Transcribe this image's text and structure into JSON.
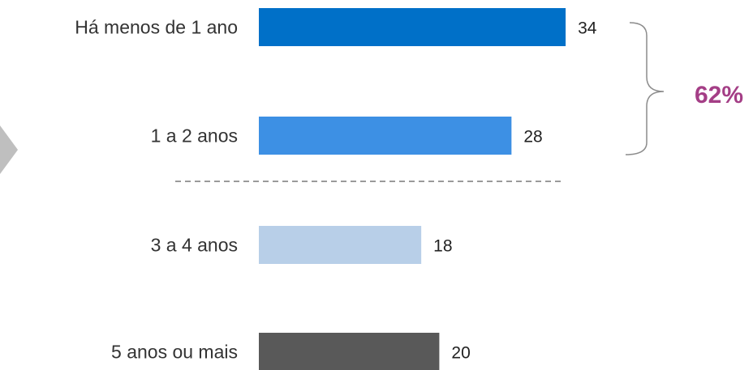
{
  "chart_data": {
    "type": "bar",
    "orientation": "horizontal",
    "categories": [
      "Há menos de 1 ano",
      "1 a 2 anos",
      "3 a 4 anos",
      "5 anos ou mais"
    ],
    "values": [
      34,
      28,
      18,
      20
    ],
    "value_labels": [
      "34",
      "28",
      "18",
      "20"
    ],
    "colors": [
      "#0070C8",
      "#3D90E4",
      "#B8CFE8",
      "#595959"
    ],
    "annotation": {
      "text": "62%",
      "color": "#A43E86",
      "spans_categories": [
        0,
        1
      ]
    },
    "divider": {
      "style": "dashed",
      "after_category": 1
    },
    "grid": false,
    "legend": "none"
  },
  "decor": {
    "arrow_color": "#BFBFBF",
    "divider_color": "#9A9A9A",
    "bracket_color": "#8C8C8C"
  }
}
